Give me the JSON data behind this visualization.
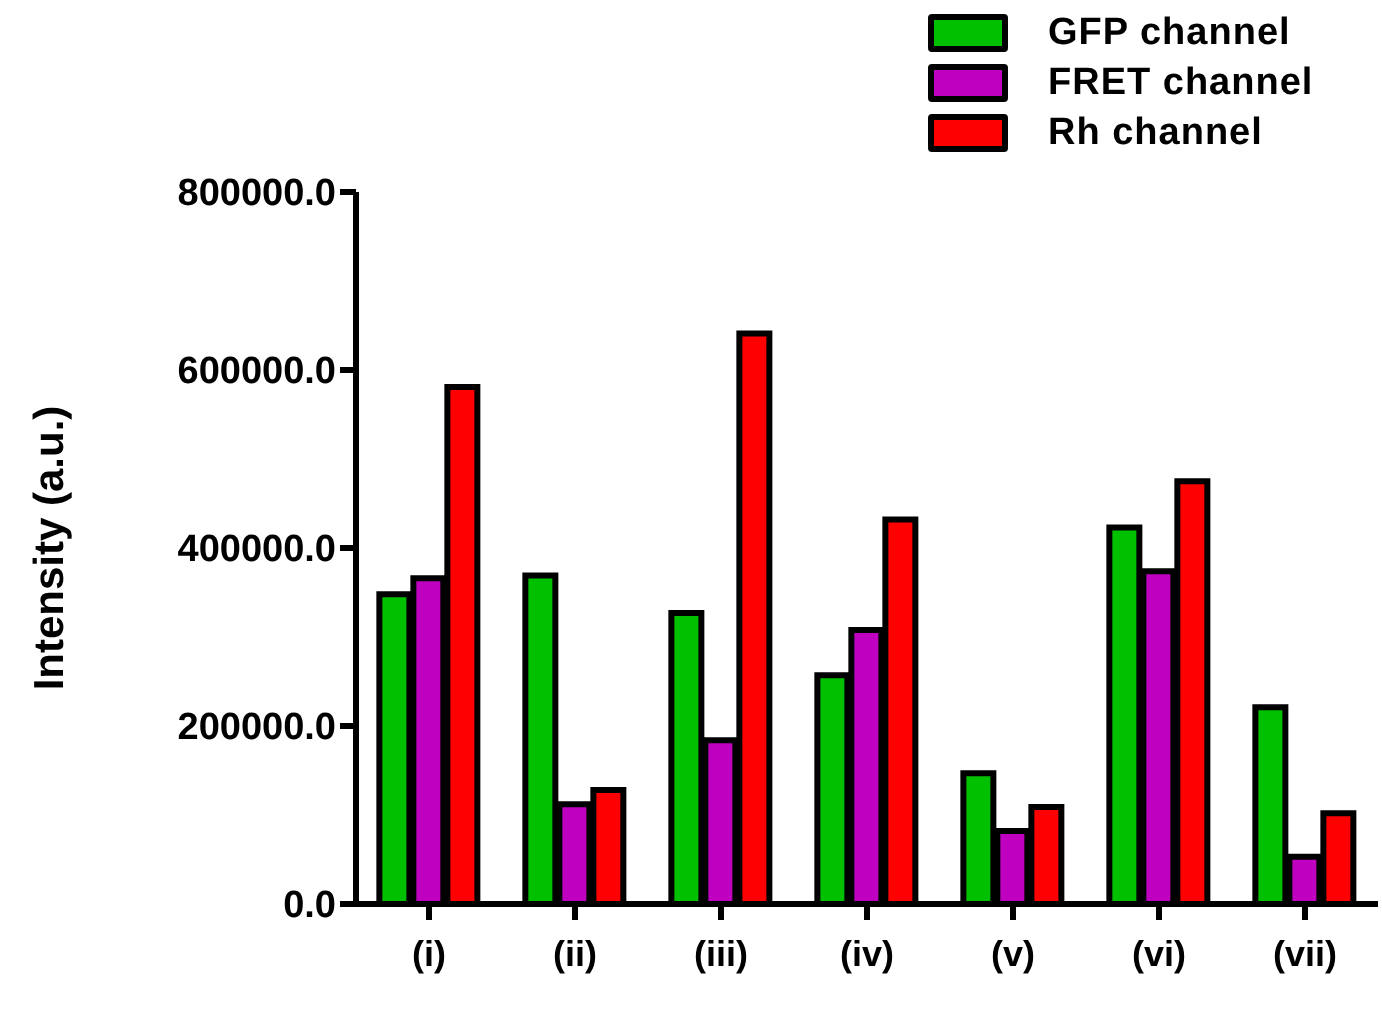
{
  "chart_data": {
    "type": "bar",
    "ylabel": "Intensity (a.u.)",
    "categories": [
      "(i)",
      "(ii)",
      "(iii)",
      "(iv)",
      "(v)",
      "(vi)",
      "(vii)"
    ],
    "series": [
      {
        "name": "GFP channel",
        "color": "#00c000",
        "values": [
          348000,
          369000,
          327000,
          257000,
          147000,
          423000,
          221000
        ]
      },
      {
        "name": "FRET channel",
        "color": "#c000c0",
        "values": [
          366000,
          112000,
          184000,
          308000,
          82000,
          374000,
          53000
        ]
      },
      {
        "name": "Rh channel",
        "color": "#ff0000",
        "values": [
          581000,
          128000,
          641000,
          432000,
          109000,
          475000,
          102000
        ]
      }
    ],
    "ylim": [
      0,
      800000
    ],
    "yticks": [
      {
        "value": 0,
        "label": "0.0"
      },
      {
        "value": 200000,
        "label": "200000.0"
      },
      {
        "value": 400000,
        "label": "400000.0"
      },
      {
        "value": 600000,
        "label": "600000.0"
      },
      {
        "value": 800000,
        "label": "800000.0"
      }
    ],
    "legend": "top right",
    "grid": false
  }
}
